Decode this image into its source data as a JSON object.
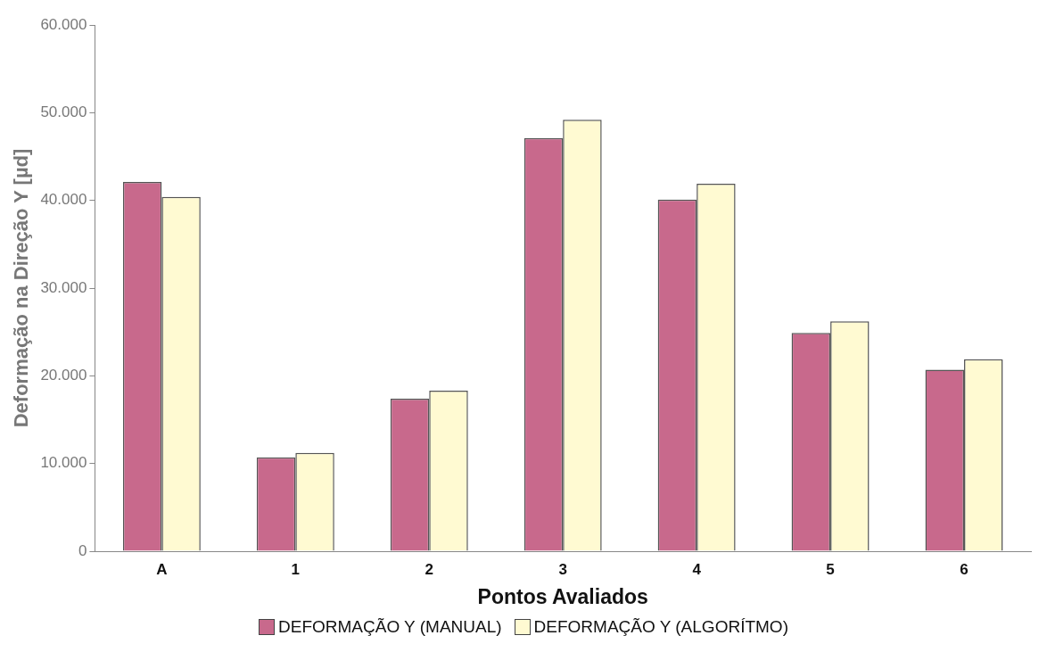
{
  "chart_data": {
    "type": "bar",
    "xlabel": "Pontos Avaliados",
    "ylabel": "Deformação na Direção Y [µd]",
    "categories": [
      "A",
      "1",
      "2",
      "3",
      "4",
      "5",
      "6"
    ],
    "series": [
      {
        "name": "DEFORMAÇÃO Y (MANUAL)",
        "color": "#c8698c",
        "values": [
          42100,
          10700,
          17400,
          47100,
          40100,
          24900,
          20700
        ]
      },
      {
        "name": "DEFORMAÇÃO Y (ALGORÍTMO)",
        "color": "#fffad2",
        "values": [
          40400,
          11200,
          18300,
          49200,
          41900,
          26200,
          21900
        ]
      }
    ],
    "ylim": [
      0,
      60000
    ],
    "yticks": [
      {
        "value": 0,
        "label": "0"
      },
      {
        "value": 10000,
        "label": "10.000"
      },
      {
        "value": 20000,
        "label": "20.000"
      },
      {
        "value": 30000,
        "label": "30.000"
      },
      {
        "value": 40000,
        "label": "40.000"
      },
      {
        "value": 50000,
        "label": "50.000"
      },
      {
        "value": 60000,
        "label": "60.000"
      }
    ],
    "grid": false,
    "legend": "bottom"
  }
}
